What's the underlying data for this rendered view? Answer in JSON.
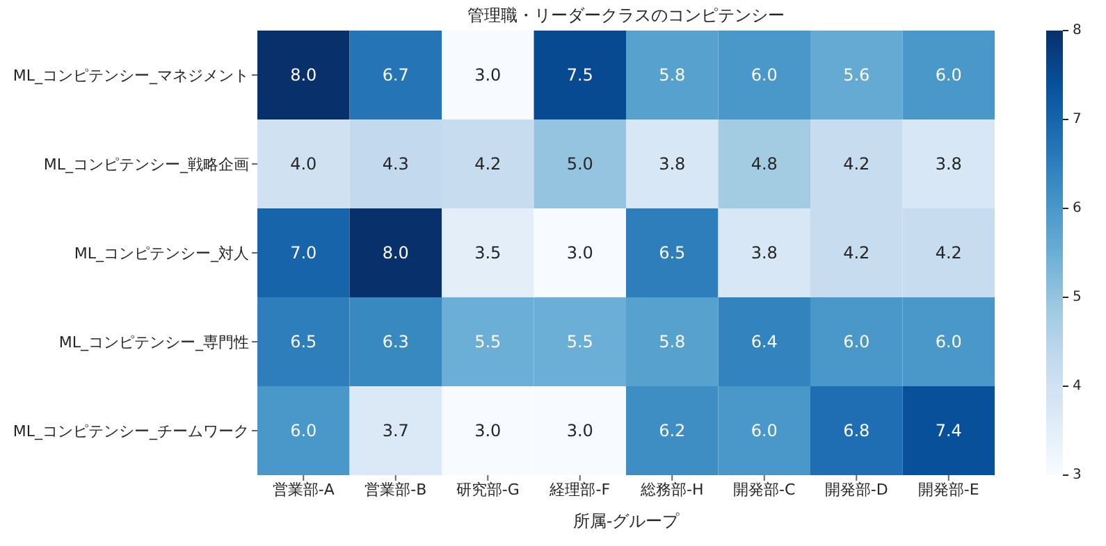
{
  "chart_data": {
    "type": "heatmap",
    "title": "管理職・リーダークラスのコンピテンシー",
    "xlabel": "所属-グループ",
    "categories": [
      "営業部-A",
      "営業部-B",
      "研究部-G",
      "経理部-F",
      "総務部-H",
      "開発部-C",
      "開発部-D",
      "開発部-E"
    ],
    "y_categories": [
      "ML_コンピテンシー_マネジメント",
      "ML_コンピテンシー_戦略企画",
      "ML_コンピテンシー_対人",
      "ML_コンピテンシー_専門性",
      "ML_コンピテンシー_チームワーク"
    ],
    "cells": [
      [
        8.0,
        6.7,
        3.0,
        7.5,
        5.8,
        6.0,
        5.6,
        6.0
      ],
      [
        4.0,
        4.3,
        4.2,
        5.0,
        3.8,
        4.8,
        4.2,
        3.8
      ],
      [
        7.0,
        8.0,
        3.5,
        3.0,
        6.5,
        3.8,
        4.2,
        4.2
      ],
      [
        6.5,
        6.3,
        5.5,
        5.5,
        5.8,
        6.4,
        6.0,
        6.0
      ],
      [
        6.0,
        3.7,
        3.0,
        3.0,
        6.2,
        6.0,
        6.8,
        7.4
      ]
    ],
    "cell_labels": [
      [
        "8.0",
        "6.7",
        "3.0",
        "7.5",
        "5.8",
        "6.0",
        "5.6",
        "6.0"
      ],
      [
        "4.0",
        "4.3",
        "4.2",
        "5.0",
        "3.8",
        "4.8",
        "4.2",
        "3.8"
      ],
      [
        "7.0",
        "8.0",
        "3.5",
        "3.0",
        "6.5",
        "3.8",
        "4.2",
        "4.2"
      ],
      [
        "6.5",
        "6.3",
        "5.5",
        "5.5",
        "5.8",
        "6.4",
        "6.0",
        "6.0"
      ],
      [
        "6.0",
        "3.7",
        "3.0",
        "3.0",
        "6.2",
        "6.0",
        "6.8",
        "7.4"
      ]
    ],
    "clim": [
      3,
      8
    ],
    "cticks": [
      3,
      4,
      5,
      6,
      7,
      8
    ]
  }
}
